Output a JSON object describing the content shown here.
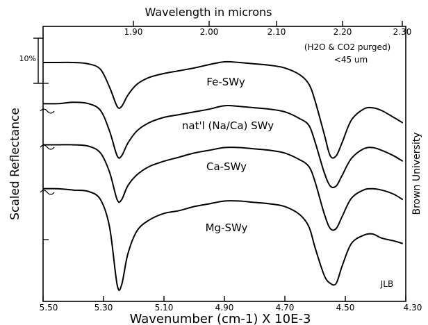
{
  "chart_data": {
    "type": "line",
    "title": "",
    "top_axis": {
      "label": "Wavelength in microns",
      "ticks": [
        "1.90",
        "2.00",
        "2.10",
        "2.20",
        "2.30"
      ]
    },
    "bottom_axis": {
      "label": "Wavenumber (cm-1) X 10E-3",
      "ticks": [
        "5.50",
        "5.30",
        "5.10",
        "4.90",
        "4.70",
        "4.50",
        "4.30"
      ],
      "xlim": [
        5.5,
        4.3
      ]
    },
    "ylabel": "Scaled Reflectance",
    "scale_bar_label": "10%",
    "annotations": {
      "conditions": [
        "(H2O & CO2 purged)",
        "<45 um"
      ],
      "right_vertical": "Brown University",
      "initials": "JLB"
    },
    "series": [
      {
        "name": "Fe-SWy",
        "x": [
          5.5,
          5.45,
          5.4,
          5.35,
          5.31,
          5.28,
          5.255,
          5.24,
          5.22,
          5.19,
          5.15,
          5.1,
          5.05,
          5.0,
          4.95,
          4.9,
          4.85,
          4.8,
          4.75,
          4.7,
          4.65,
          4.62,
          4.6,
          4.57,
          4.55,
          4.53,
          4.51,
          4.48,
          4.44,
          4.41,
          4.38,
          4.34,
          4.31
        ],
        "y": [
          0.9,
          0.9,
          0.9,
          0.89,
          0.85,
          0.72,
          0.58,
          0.58,
          0.66,
          0.74,
          0.79,
          0.82,
          0.84,
          0.86,
          0.885,
          0.905,
          0.9,
          0.89,
          0.88,
          0.86,
          0.81,
          0.74,
          0.62,
          0.38,
          0.22,
          0.22,
          0.32,
          0.48,
          0.56,
          0.57,
          0.55,
          0.5,
          0.46
        ]
      },
      {
        "name": "nat'l (Na/Ca) SWy",
        "x": [
          5.5,
          5.45,
          5.4,
          5.35,
          5.31,
          5.28,
          5.255,
          5.24,
          5.22,
          5.19,
          5.15,
          5.1,
          5.05,
          5.0,
          4.95,
          4.9,
          4.85,
          4.8,
          4.75,
          4.7,
          4.65,
          4.62,
          4.6,
          4.57,
          4.55,
          4.53,
          4.51,
          4.48,
          4.44,
          4.41,
          4.38,
          4.34,
          4.31
        ],
        "y": [
          0.6,
          0.6,
          0.61,
          0.6,
          0.55,
          0.4,
          0.22,
          0.22,
          0.31,
          0.4,
          0.46,
          0.5,
          0.52,
          0.54,
          0.56,
          0.585,
          0.58,
          0.57,
          0.56,
          0.54,
          0.49,
          0.44,
          0.32,
          0.1,
          0.0,
          0.0,
          0.08,
          0.2,
          0.27,
          0.28,
          0.26,
          0.22,
          0.18
        ]
      },
      {
        "name": "Ca-SWy",
        "x": [
          5.5,
          5.45,
          5.4,
          5.35,
          5.31,
          5.28,
          5.255,
          5.24,
          5.22,
          5.19,
          5.15,
          5.1,
          5.05,
          5.0,
          4.95,
          4.9,
          4.85,
          4.8,
          4.75,
          4.7,
          4.65,
          4.62,
          4.6,
          4.57,
          4.55,
          4.53,
          4.51,
          4.48,
          4.44,
          4.41,
          4.38,
          4.34,
          4.31
        ],
        "y": [
          0.3,
          0.3,
          0.3,
          0.29,
          0.24,
          0.1,
          -0.1,
          -0.1,
          0.0,
          0.08,
          0.14,
          0.18,
          0.21,
          0.24,
          0.26,
          0.28,
          0.28,
          0.27,
          0.26,
          0.24,
          0.19,
          0.14,
          0.03,
          -0.2,
          -0.31,
          -0.31,
          -0.22,
          -0.09,
          -0.03,
          -0.02,
          -0.03,
          -0.06,
          -0.1
        ]
      },
      {
        "name": "Mg-SWy",
        "x": [
          5.5,
          5.45,
          5.4,
          5.35,
          5.31,
          5.28,
          5.255,
          5.24,
          5.22,
          5.19,
          5.15,
          5.1,
          5.05,
          5.0,
          4.95,
          4.9,
          4.85,
          4.8,
          4.75,
          4.7,
          4.65,
          4.62,
          4.6,
          4.57,
          4.55,
          4.53,
          4.51,
          4.48,
          4.44,
          4.41,
          4.38,
          4.34,
          4.31
        ],
        "y": [
          -0.02,
          -0.02,
          -0.03,
          -0.04,
          -0.1,
          -0.3,
          -0.72,
          -0.72,
          -0.5,
          -0.33,
          -0.25,
          -0.2,
          -0.18,
          -0.15,
          -0.13,
          -0.11,
          -0.11,
          -0.12,
          -0.13,
          -0.15,
          -0.21,
          -0.3,
          -0.45,
          -0.65,
          -0.71,
          -0.71,
          -0.58,
          -0.42,
          -0.36,
          -0.35,
          -0.38,
          -0.4,
          -0.42
        ]
      }
    ]
  }
}
